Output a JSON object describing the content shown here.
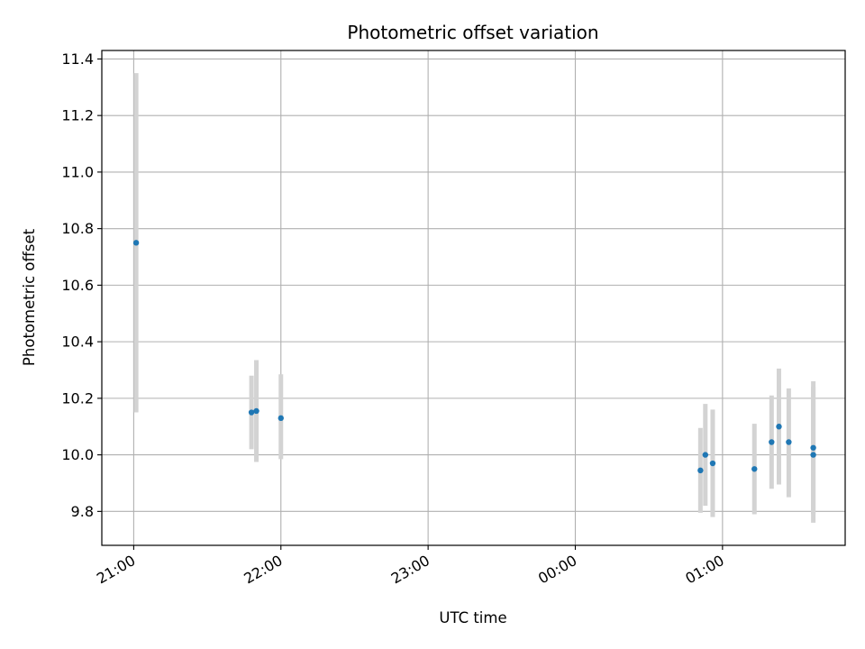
{
  "chart_data": {
    "type": "scatter",
    "title": "Photometric offset variation",
    "xlabel": "UTC time",
    "ylabel": "Photometric offset",
    "x_axis_type": "time",
    "xlim": [
      "20:47",
      "01:50"
    ],
    "ylim": [
      9.68,
      11.43
    ],
    "x_ticks": [
      "21:00",
      "22:00",
      "23:00",
      "00:00",
      "01:00"
    ],
    "y_ticks": [
      9.8,
      10.0,
      10.2,
      10.4,
      10.6,
      10.8,
      11.0,
      11.2,
      11.4
    ],
    "y_tick_labels": [
      "9.8",
      "10.0",
      "10.2",
      "10.4",
      "10.6",
      "10.8",
      "11.0",
      "11.2",
      "11.4"
    ],
    "grid": true,
    "points": [
      {
        "x": "21:01",
        "y": 10.75,
        "y_low": 10.15,
        "y_high": 11.35
      },
      {
        "x": "21:48",
        "y": 10.15,
        "y_low": 10.02,
        "y_high": 10.28
      },
      {
        "x": "21:50",
        "y": 10.155,
        "y_low": 9.975,
        "y_high": 10.335
      },
      {
        "x": "22:00",
        "y": 10.13,
        "y_low": 9.985,
        "y_high": 10.285
      },
      {
        "x": "00:51",
        "y": 9.945,
        "y_low": 9.795,
        "y_high": 10.095
      },
      {
        "x": "00:53",
        "y": 10.0,
        "y_low": 9.82,
        "y_high": 10.18
      },
      {
        "x": "00:56",
        "y": 9.97,
        "y_low": 9.78,
        "y_high": 10.16
      },
      {
        "x": "01:13",
        "y": 9.95,
        "y_low": 9.79,
        "y_high": 10.11
      },
      {
        "x": "01:20",
        "y": 10.045,
        "y_low": 9.88,
        "y_high": 10.21
      },
      {
        "x": "01:23",
        "y": 10.1,
        "y_low": 9.895,
        "y_high": 10.305
      },
      {
        "x": "01:27",
        "y": 10.045,
        "y_low": 9.85,
        "y_high": 10.235
      },
      {
        "x": "01:37",
        "y": 10.025,
        "y_low": 9.79,
        "y_high": 10.26
      },
      {
        "x": "01:37",
        "y": 10.0,
        "y_low": 9.76,
        "y_high": 10.24
      }
    ],
    "colors": {
      "point": "#1f77b4",
      "errorbar": "#d3d3d3",
      "grid": "#b0b0b0"
    }
  }
}
